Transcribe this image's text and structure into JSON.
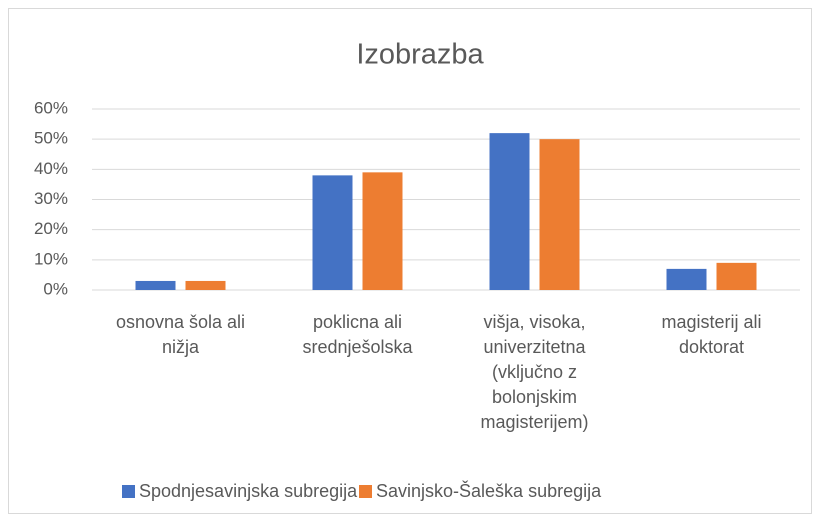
{
  "chart_data": {
    "type": "bar",
    "title": "Izobrazba",
    "categories": [
      "osnovna šola ali nižja",
      "poklicna ali srednješolska",
      "višja, visoka, univerzitetna (vključno z bolonjskim magisterijem)",
      "magisterij ali doktorat"
    ],
    "series": [
      {
        "name": "Spodnjesavinjska subregija",
        "color": "#4472c4",
        "values": [
          3,
          38,
          52,
          7
        ]
      },
      {
        "name": "Savinjsko-Šaleška subregija",
        "color": "#ed7d31",
        "values": [
          3,
          39,
          50,
          9
        ]
      }
    ],
    "ylim": [
      0,
      60
    ],
    "yticks": [
      {
        "value": 0,
        "label": "0%"
      },
      {
        "value": 10,
        "label": "10%"
      },
      {
        "value": 20,
        "label": "20%"
      },
      {
        "value": 30,
        "label": "30%"
      },
      {
        "value": 40,
        "label": "40%"
      },
      {
        "value": 50,
        "label": "50%"
      },
      {
        "value": 60,
        "label": "60%"
      }
    ],
    "grid": true,
    "legend": "bottom"
  }
}
